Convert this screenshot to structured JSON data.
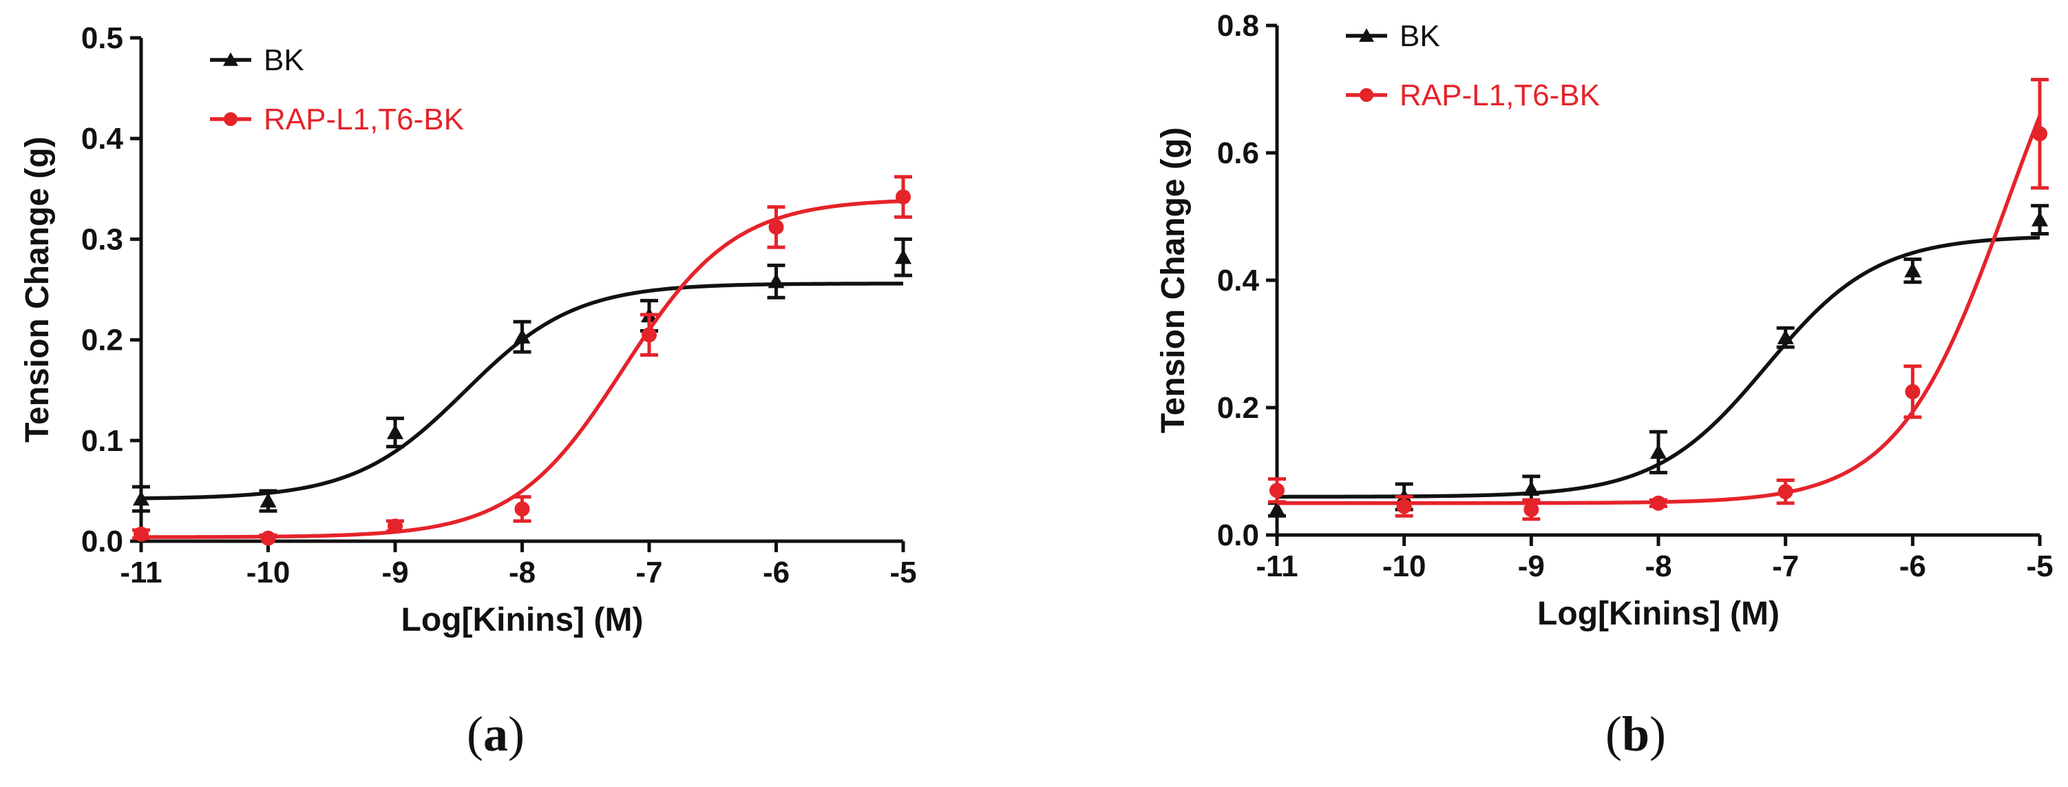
{
  "chart_data": [
    {
      "type": "line",
      "panel": "a",
      "caption_open": "(",
      "caption_letter": "a",
      "caption_close": ")",
      "xlabel": "Log[Kinins] (M)",
      "ylabel": "Tension Change (g)",
      "xlim": [
        -11,
        -5
      ],
      "ylim": [
        0,
        0.5
      ],
      "xticks": [
        -11,
        -10,
        -9,
        -8,
        -7,
        -6,
        -5
      ],
      "yticks": [
        0.0,
        0.1,
        0.2,
        0.3,
        0.4,
        0.5
      ],
      "ytick_labels": [
        "0.0",
        "0.1",
        "0.2",
        "0.3",
        "0.4",
        "0.5"
      ],
      "legend_position": "top-left",
      "series": [
        {
          "name": "BK",
          "color": "#111111",
          "marker": "triangle",
          "x": [
            -11,
            -10,
            -9,
            -8,
            -7,
            -6,
            -5
          ],
          "y": [
            0.042,
            0.04,
            0.108,
            0.203,
            0.224,
            0.258,
            0.282
          ],
          "err": [
            0.012,
            0.01,
            0.014,
            0.015,
            0.015,
            0.016,
            0.018
          ],
          "fit": {
            "bottom": 0.042,
            "top": 0.256,
            "logec50": -8.45,
            "hill": 1.0
          }
        },
        {
          "name": "RAP-L1,T6-BK",
          "color": "#e5232a",
          "marker": "circle",
          "x": [
            -11,
            -10,
            -9,
            -8,
            -7,
            -6,
            -5
          ],
          "y": [
            0.007,
            0.003,
            0.015,
            0.032,
            0.205,
            0.312,
            0.342
          ],
          "err": [
            0.004,
            0.003,
            0.005,
            0.012,
            0.02,
            0.02,
            0.02
          ],
          "fit": {
            "bottom": 0.004,
            "top": 0.34,
            "logec50": -7.2,
            "hill": 1.0
          }
        }
      ]
    },
    {
      "type": "line",
      "panel": "b",
      "caption_open": "(",
      "caption_letter": "b",
      "caption_close": ")",
      "xlabel": "Log[Kinins] (M)",
      "ylabel": "Tension Change (g)",
      "xlim": [
        -11,
        -5
      ],
      "ylim": [
        0,
        0.8
      ],
      "xticks": [
        -11,
        -10,
        -9,
        -8,
        -7,
        -6,
        -5
      ],
      "yticks": [
        0.0,
        0.2,
        0.4,
        0.6,
        0.8
      ],
      "ytick_labels": [
        "0.0",
        "0.2",
        "0.4",
        "0.6",
        "0.8"
      ],
      "legend_position": "top-left",
      "series": [
        {
          "name": "BK",
          "color": "#111111",
          "marker": "triangle",
          "x": [
            -11,
            -10,
            -9,
            -8,
            -7,
            -6,
            -5
          ],
          "y": [
            0.04,
            0.06,
            0.072,
            0.13,
            0.31,
            0.415,
            0.495
          ],
          "err": [
            0.01,
            0.02,
            0.02,
            0.032,
            0.015,
            0.018,
            0.022
          ],
          "fit": {
            "bottom": 0.06,
            "top": 0.47,
            "logec50": -7.15,
            "hill": 1.0
          }
        },
        {
          "name": "RAP-L1,T6-BK",
          "color": "#e5232a",
          "marker": "circle",
          "x": [
            -11,
            -10,
            -9,
            -8,
            -7,
            -6,
            -5
          ],
          "y": [
            0.07,
            0.045,
            0.04,
            0.05,
            0.068,
            0.225,
            0.63
          ],
          "err": [
            0.018,
            0.015,
            0.015,
            0.005,
            0.018,
            0.04,
            0.085
          ],
          "fit": {
            "bottom": 0.05,
            "top": 1.0,
            "logec50": -5.25,
            "hill": 1.0
          }
        }
      ]
    }
  ]
}
